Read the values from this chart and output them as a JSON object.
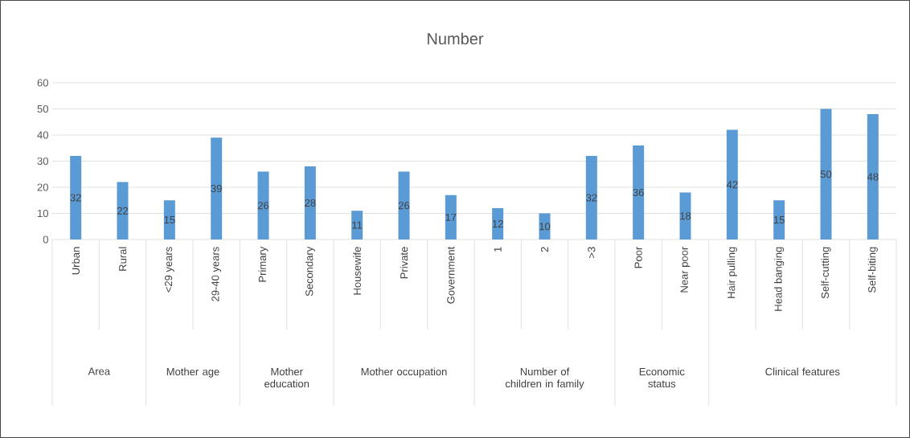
{
  "chart_data": {
    "type": "bar",
    "title": "Number",
    "categories": [
      "Urban",
      "Rural",
      "<29 years",
      "29-40 years",
      "Primary",
      "Secondary",
      "Housewife",
      "Private",
      "Government",
      "1",
      "2",
      ">3",
      "Poor",
      "Near poor",
      "Hair pulling",
      "Head banging",
      "Self-cutting",
      "Self-biting"
    ],
    "values": [
      32,
      22,
      15,
      39,
      26,
      28,
      11,
      26,
      17,
      12,
      10,
      32,
      36,
      18,
      42,
      15,
      50,
      48
    ],
    "color": "#5b9bd5",
    "data_labels": true,
    "ylim": [
      0,
      60
    ],
    "yticks": [
      0,
      10,
      20,
      30,
      40,
      50,
      60
    ],
    "grid": "y",
    "annotations": [
      "Area",
      "Mother age",
      "Mother education",
      "Mother occupation",
      "Number of children in family",
      "Economic status",
      "Clinical features"
    ]
  }
}
